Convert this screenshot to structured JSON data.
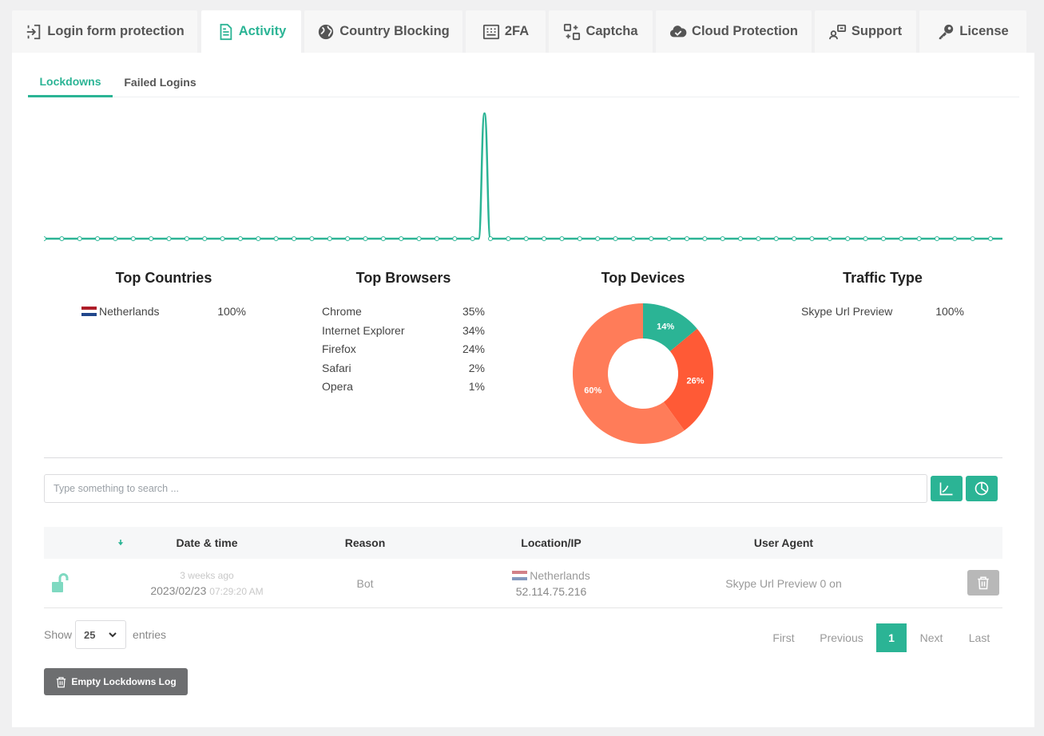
{
  "tabs": [
    {
      "label": "Login form protection",
      "icon": "sign-in-icon"
    },
    {
      "label": "Activity",
      "icon": "document-icon"
    },
    {
      "label": "Country Blocking",
      "icon": "globe-icon"
    },
    {
      "label": "2FA",
      "icon": "keypad-icon"
    },
    {
      "label": "Captcha",
      "icon": "captcha-icon"
    },
    {
      "label": "Cloud Protection",
      "icon": "cloud-check-icon"
    },
    {
      "label": "Support",
      "icon": "support-icon"
    },
    {
      "label": "License",
      "icon": "key-icon"
    }
  ],
  "active_tab": "Activity",
  "subtabs": [
    "Lockdowns",
    "Failed Logins"
  ],
  "active_subtab": "Lockdowns",
  "colors": {
    "accent": "#2bb495",
    "donut_green": "#2bb495",
    "donut_red": "#ff5a36",
    "donut_orange": "#ff7c59"
  },
  "chart_data": [
    {
      "type": "line",
      "values": [
        0,
        0,
        0,
        0,
        0,
        0,
        0,
        0,
        0,
        0,
        0,
        0,
        0,
        0,
        0,
        0,
        0,
        0,
        0,
        0,
        0,
        0,
        0,
        0,
        0,
        0,
        0,
        0,
        0,
        0,
        0,
        0,
        0,
        0,
        0,
        0,
        0,
        0,
        0,
        0,
        0,
        0,
        0,
        0,
        0,
        0,
        0,
        0,
        0,
        0,
        0,
        0,
        0,
        0,
        0,
        0,
        0,
        0,
        0,
        0,
        0,
        0,
        0,
        0,
        0,
        0,
        0,
        0,
        0,
        0,
        0,
        0,
        0,
        0,
        1,
        0,
        0,
        0,
        0,
        0,
        0,
        0,
        0,
        0,
        0,
        0,
        0,
        0,
        0,
        0,
        0,
        0,
        0,
        0,
        0,
        0,
        0,
        0,
        0,
        0,
        0,
        0,
        0,
        0,
        0,
        0,
        0,
        0,
        0,
        0,
        0,
        0,
        0,
        0,
        0,
        0,
        0,
        0,
        0,
        0,
        0,
        0,
        0,
        0,
        0,
        0,
        0,
        0,
        0,
        0,
        0,
        0,
        0,
        0,
        0,
        0,
        0,
        0,
        0,
        0,
        0,
        0,
        0,
        0,
        0,
        0,
        0,
        0,
        0,
        0,
        0,
        0,
        0,
        0,
        0,
        0,
        0,
        0,
        0,
        0,
        0,
        0
      ],
      "grid": false,
      "legend": "none"
    },
    {
      "type": "pie",
      "title": "Top Devices",
      "slices": [
        {
          "label": "14%",
          "value": 14,
          "color": "#2bb495"
        },
        {
          "label": "26%",
          "value": 26,
          "color": "#ff5a36"
        },
        {
          "label": "60%",
          "value": 60,
          "color": "#ff7c59"
        }
      ]
    }
  ],
  "stats": {
    "countries": {
      "title": "Top Countries",
      "rows": [
        {
          "label": "Netherlands",
          "value": "100%"
        }
      ]
    },
    "browsers": {
      "title": "Top Browsers",
      "rows": [
        {
          "label": "Chrome",
          "value": "35%"
        },
        {
          "label": "Internet Explorer",
          "value": "34%"
        },
        {
          "label": "Firefox",
          "value": "24%"
        },
        {
          "label": "Safari",
          "value": "2%"
        },
        {
          "label": "Opera",
          "value": "1%"
        }
      ]
    },
    "devices": {
      "title": "Top Devices"
    },
    "traffic": {
      "title": "Traffic Type",
      "rows": [
        {
          "label": "Skype Url Preview",
          "value": "100%"
        }
      ]
    }
  },
  "search": {
    "placeholder": "Type something to search ..."
  },
  "table": {
    "columns": [
      "Date & time",
      "Reason",
      "Location/IP",
      "User Agent"
    ],
    "rows": [
      {
        "ago": "3 weeks ago",
        "date": "2023/02/23",
        "time": "07:29:20 AM",
        "reason": "Bot",
        "country": "Netherlands",
        "ip": "52.114.75.216",
        "user_agent": "Skype Url Preview 0 on"
      }
    ]
  },
  "footer": {
    "show_label": "Show",
    "page_size": "25",
    "entries_label": "entries",
    "pagination": [
      "First",
      "Previous",
      "1",
      "Next",
      "Last"
    ],
    "current_page": "1",
    "empty_button": "Empty Lockdowns Log"
  }
}
